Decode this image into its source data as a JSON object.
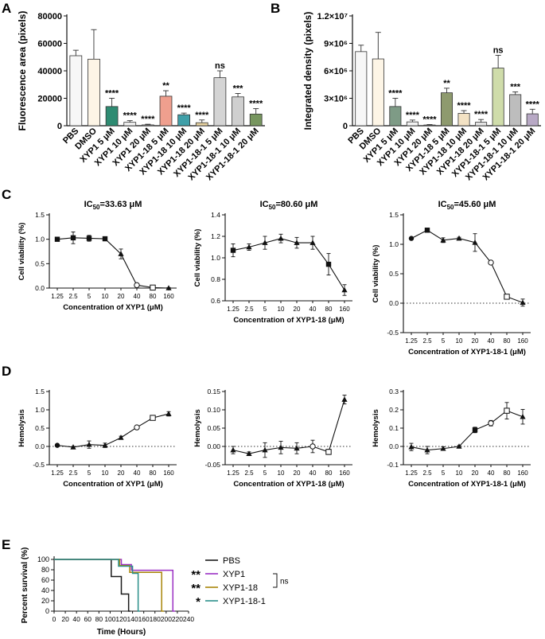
{
  "panel_labels": {
    "A": "A",
    "B": "B",
    "C": "C",
    "D": "D",
    "E": "E"
  },
  "chart_data": [
    {
      "id": "A",
      "type": "bar",
      "title": "",
      "xlabel": "",
      "ylabel": "Fluorescence area (pixels)",
      "ylim": [
        0,
        80000
      ],
      "y_ticks": [
        0,
        20000,
        40000,
        60000,
        80000
      ],
      "y_tick_labels": [
        "0",
        "20000",
        "40000",
        "60000",
        "80000"
      ],
      "categories": [
        "PBS",
        "DMSO",
        "XYP1 5 μM",
        "XYP1 10 μM",
        "XYP1 20 μM",
        "XYP1-18 5 μM",
        "XYP1-18 10 μM",
        "XYP1-18 20 μM",
        "XYP1-18-1 5 μM",
        "XYP1-18-1 10 μM",
        "XYP1-18-1 20 μM"
      ],
      "values": [
        51000,
        48500,
        14000,
        2500,
        600,
        21500,
        8000,
        2200,
        35000,
        21000,
        8500
      ],
      "errors": [
        4000,
        21500,
        6000,
        1200,
        500,
        4000,
        1200,
        2000,
        5000,
        2500,
        4000
      ],
      "significance": [
        "",
        "",
        "****",
        "****",
        "****",
        "**",
        "****",
        "****",
        "ns",
        "***",
        "****"
      ],
      "colors": [
        "#f7f7f7",
        "#fdf5e6",
        "#2e8b72",
        "#f2f2f2",
        "#f2f2f2",
        "#ef9f8e",
        "#3f9fa8",
        "#e8d3a0",
        "#d4d4d4",
        "#cfcfcf",
        "#77965f"
      ]
    },
    {
      "id": "B",
      "type": "bar",
      "title": "",
      "xlabel": "",
      "ylabel": "Integrated density (pixels)",
      "ylim": [
        0,
        12000000
      ],
      "y_ticks": [
        0,
        3000000,
        6000000,
        9000000,
        12000000
      ],
      "y_tick_labels": [
        "0",
        "3×10⁶",
        "6×10⁶",
        "9×10⁶",
        "1.2×10⁷"
      ],
      "categories": [
        "PBS",
        "DMSO",
        "XYP1 5 μM",
        "XYP1 10 μM",
        "XYP1 20 μM",
        "XYP1-18 5 μM",
        "XYP1-18 10 μM",
        "XYP1-18 20 μM",
        "XYP1-18-1 5 μM",
        "XYP1-18-1 10 μM",
        "XYP1-18-1 20 μM"
      ],
      "values": [
        8100000,
        7300000,
        2100000,
        420000,
        80000,
        3600000,
        1350000,
        380000,
        6300000,
        3400000,
        1300000
      ],
      "errors": [
        700000,
        2900000,
        900000,
        200000,
        50000,
        500000,
        300000,
        300000,
        1400000,
        300000,
        500000
      ],
      "significance": [
        "",
        "",
        "****",
        "****",
        "****",
        "**",
        "****",
        "****",
        "ns",
        "***",
        "****"
      ],
      "colors": [
        "#f7f7f7",
        "#fdf5e6",
        "#7e9b86",
        "#f2f2f2",
        "#f2f2f2",
        "#8e9a6e",
        "#f3e2c4",
        "#e5e5e5",
        "#cfdcaa",
        "#bdbdbd",
        "#b8a9c5"
      ]
    },
    {
      "id": "C1",
      "type": "line",
      "title_prefix": "IC",
      "title_sub": "50",
      "title_suffix": "=33.63 μM",
      "xlabel": "Concentration of XYP1 (μM)",
      "ylabel": "Cell viability (%)",
      "x": [
        "1.25",
        "2.5",
        "5",
        "10",
        "20",
        "40",
        "80",
        "160"
      ],
      "y": [
        1.0,
        1.03,
        1.02,
        1.01,
        0.7,
        0.06,
        0.01,
        0.0
      ],
      "err": [
        0.04,
        0.12,
        0.06,
        0.02,
        0.1,
        0.01,
        0.01,
        0.01
      ],
      "markers": [
        "square",
        "square",
        "square",
        "square",
        "triangle",
        "circle-open",
        "square-open",
        "triangle"
      ],
      "ylim": [
        0,
        1.5
      ],
      "y_ticks": [
        0,
        0.5,
        1.0,
        1.5
      ],
      "y_tick_labels": [
        "0.0",
        "0.5",
        "1.0",
        "1.5"
      ],
      "zero_line": false
    },
    {
      "id": "C2",
      "type": "line",
      "title_prefix": "IC",
      "title_sub": "50",
      "title_suffix": "=80.60 μM",
      "xlabel": "Concentration of XYP1-18 (μM)",
      "ylabel": "Cell viability (%)",
      "x": [
        "1.25",
        "2.5",
        "5",
        "10",
        "20",
        "40",
        "80",
        "160"
      ],
      "y": [
        1.07,
        1.1,
        1.14,
        1.18,
        1.14,
        1.14,
        0.94,
        0.7
      ],
      "err": [
        0.06,
        0.03,
        0.06,
        0.04,
        0.05,
        0.06,
        0.1,
        0.05
      ],
      "markers": [
        "square",
        "triangle",
        "triangle",
        "triangle",
        "triangle",
        "triangle",
        "square",
        "triangle"
      ],
      "ylim": [
        0.6,
        1.4
      ],
      "y_ticks": [
        0.6,
        0.8,
        1.0,
        1.2,
        1.4
      ],
      "y_tick_labels": [
        "0.6",
        "0.8",
        "1.0",
        "1.2",
        "1.4"
      ],
      "zero_line": false
    },
    {
      "id": "C3",
      "type": "line",
      "title_prefix": "IC",
      "title_sub": "50",
      "title_suffix": "=45.60 μM",
      "xlabel": "Concentration of XYP1-18-1 (μM)",
      "ylabel": "Cell viability (%)",
      "x": [
        "1.25",
        "2.5",
        "5",
        "10",
        "20",
        "40",
        "80",
        "160"
      ],
      "y": [
        1.1,
        1.24,
        1.07,
        1.1,
        1.03,
        0.69,
        0.11,
        0.01
      ],
      "err": [
        0.02,
        0.02,
        0.04,
        0.02,
        0.15,
        0.01,
        0.02,
        0.06
      ],
      "markers": [
        "circle",
        "square",
        "triangle",
        "triangle",
        "triangle",
        "circle-open",
        "square-open",
        "triangle"
      ],
      "ylim": [
        -0.5,
        1.5
      ],
      "y_ticks": [
        -0.5,
        0,
        0.5,
        1.0,
        1.5
      ],
      "y_tick_labels": [
        "-0.5",
        "0.0",
        "0.5",
        "1.0",
        "1.5"
      ],
      "zero_line": true
    },
    {
      "id": "D1",
      "type": "line",
      "xlabel": "Concentration of XYP1 (μM)",
      "ylabel": "Hemolysis",
      "x": [
        "1.25",
        "2.5",
        "5",
        "10",
        "20",
        "40",
        "80",
        "160"
      ],
      "y": [
        0.03,
        -0.02,
        0.05,
        0.03,
        0.24,
        0.52,
        0.78,
        0.89
      ],
      "err": [
        0.02,
        0.02,
        0.1,
        0.06,
        0.04,
        0.03,
        0.06,
        0.06
      ],
      "markers": [
        "circle",
        "triangle",
        "triangle",
        "triangle",
        "triangle",
        "circle-open",
        "square-open",
        "triangle"
      ],
      "ylim": [
        -0.5,
        1.5
      ],
      "y_ticks": [
        -0.5,
        0,
        0.5,
        1.0,
        1.5
      ],
      "y_tick_labels": [
        "-0.5",
        "0.0",
        "0.5",
        "1.0",
        "1.5"
      ],
      "zero_line": true
    },
    {
      "id": "D2",
      "type": "line",
      "xlabel": "Concentration of XYP1-18 (μM)",
      "ylabel": "Hemolysis",
      "x": [
        "1.25",
        "2.5",
        "5",
        "10",
        "20",
        "40",
        "80",
        "160"
      ],
      "y": [
        -0.01,
        -0.02,
        -0.01,
        -0.003,
        -0.005,
        0.0,
        -0.015,
        0.128
      ],
      "err": [
        0.01,
        0.005,
        0.02,
        0.017,
        0.015,
        0.017,
        0.007,
        0.012
      ],
      "markers": [
        "triangle",
        "triangle",
        "triangle",
        "triangle",
        "triangle",
        "circle-open",
        "square-open",
        "triangle"
      ],
      "ylim": [
        -0.05,
        0.15
      ],
      "y_ticks": [
        -0.05,
        0,
        0.05,
        0.1,
        0.15
      ],
      "y_tick_labels": [
        "-0.05",
        "0.00",
        "0.05",
        "0.10",
        "0.15"
      ],
      "zero_line": true
    },
    {
      "id": "D3",
      "type": "line",
      "xlabel": "Concentration of XYP1-18-1 (μM)",
      "ylabel": "Hemolysis",
      "x": [
        "1.25",
        "2.5",
        "5",
        "10",
        "20",
        "40",
        "80",
        "160"
      ],
      "y": [
        -0.003,
        -0.02,
        -0.012,
        0.0,
        0.09,
        0.127,
        0.195,
        0.162
      ],
      "err": [
        0.02,
        0.02,
        0.01,
        0.005,
        0.015,
        0.015,
        0.045,
        0.04
      ],
      "markers": [
        "triangle",
        "triangle",
        "triangle",
        "triangle",
        "square",
        "circle-open",
        "square-open",
        "triangle"
      ],
      "ylim": [
        -0.1,
        0.3
      ],
      "y_ticks": [
        -0.1,
        0,
        0.1,
        0.2,
        0.3
      ],
      "y_tick_labels": [
        "-0.1",
        "0.0",
        "0.1",
        "0.2",
        "0.3"
      ],
      "zero_line": true
    },
    {
      "id": "E",
      "type": "line",
      "subtype": "survival_step",
      "xlabel": "Time (Hours)",
      "ylabel": "Percent survival (%)",
      "xlim": [
        0,
        240
      ],
      "x_ticks": [
        0,
        20,
        40,
        60,
        80,
        100,
        120,
        140,
        160,
        180,
        200,
        220,
        240
      ],
      "x_tick_labels": [
        "0",
        "20",
        "40",
        "60",
        "80",
        "100",
        "120",
        "140",
        "160",
        "180",
        "200",
        "220",
        "240"
      ],
      "ylim": [
        0,
        100
      ],
      "y_ticks": [
        0,
        20,
        40,
        60,
        80,
        100
      ],
      "y_tick_labels": [
        "0",
        "20",
        "40",
        "60",
        "80",
        "100"
      ],
      "series": [
        {
          "name": "PBS",
          "color": "#1a1a1a",
          "stars": "",
          "steps": [
            [
              0,
              100
            ],
            [
              102,
              100
            ],
            [
              102,
              67
            ],
            [
              120,
              67
            ],
            [
              120,
              33
            ],
            [
              133,
              33
            ],
            [
              133,
              0
            ],
            [
              136,
              0
            ]
          ]
        },
        {
          "name": "XYP1",
          "color": "#9b30c4",
          "stars": "**",
          "steps": [
            [
              0,
              100
            ],
            [
              120,
              100
            ],
            [
              120,
              90
            ],
            [
              138,
              90
            ],
            [
              138,
              79
            ],
            [
              212,
              79
            ],
            [
              212,
              0
            ],
            [
              216,
              0
            ]
          ]
        },
        {
          "name": "XYP1-18",
          "color": "#a8860a",
          "stars": "**",
          "steps": [
            [
              0,
              100
            ],
            [
              117,
              100
            ],
            [
              117,
              88
            ],
            [
              135,
              88
            ],
            [
              135,
              75
            ],
            [
              192,
              75
            ],
            [
              192,
              0
            ],
            [
              196,
              0
            ]
          ]
        },
        {
          "name": "XYP1-18-1",
          "color": "#2a8f8a",
          "stars": "*",
          "steps": [
            [
              0,
              100
            ],
            [
              115,
              100
            ],
            [
              115,
              87
            ],
            [
              140,
              87
            ],
            [
              140,
              73
            ],
            [
              150,
              73
            ],
            [
              150,
              0
            ],
            [
              153,
              0
            ]
          ]
        }
      ],
      "ns_label": "ns"
    }
  ]
}
